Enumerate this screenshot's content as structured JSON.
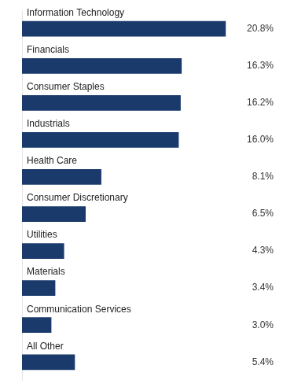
{
  "chart_data": {
    "type": "bar",
    "orientation": "horizontal",
    "categories": [
      "Information Technology",
      "Financials",
      "Consumer Staples",
      "Industrials",
      "Health Care",
      "Consumer Discretionary",
      "Utilities",
      "Materials",
      "Communication Services",
      "All Other"
    ],
    "values": [
      20.8,
      16.3,
      16.2,
      16.0,
      8.1,
      6.5,
      4.3,
      3.4,
      3.0,
      5.4
    ],
    "value_labels": [
      "20.8%",
      "16.3%",
      "16.2%",
      "16.0%",
      "8.1%",
      "6.5%",
      "4.3%",
      "3.4%",
      "3.0%",
      "5.4%"
    ],
    "color": "#1a3a6b",
    "xlim": [
      0,
      26
    ],
    "grid": false,
    "data_labels": true,
    "tick_labels": "y"
  }
}
